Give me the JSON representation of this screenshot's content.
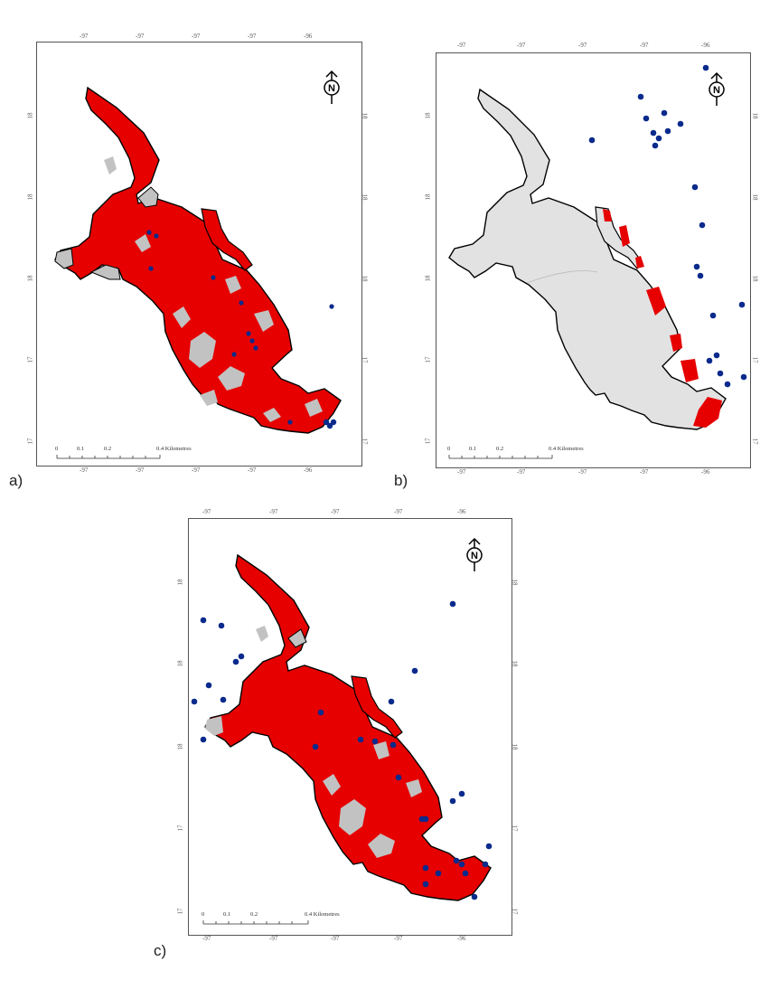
{
  "panels": [
    {
      "label": "a)",
      "layer": "red",
      "points": "a"
    },
    {
      "label": "b)",
      "layer": "red",
      "points": "b"
    },
    {
      "label": "c)",
      "layer": "red",
      "points": "c"
    }
  ],
  "scale_bar": {
    "labels": [
      "0",
      "0.1",
      "0.2",
      "0.4 Kilometres"
    ]
  },
  "ticks": {
    "top": [
      "-97",
      "-97",
      "-97",
      "-97",
      "-96"
    ],
    "bottom": [
      "-97",
      "-97",
      "-97",
      "-97",
      "-96"
    ],
    "side": [
      "18",
      "18",
      "18",
      "17",
      "17"
    ]
  },
  "north_arrow": "N",
  "colors": {
    "suitable": "#e60000",
    "unsuitable": "#c2c2c2",
    "points": "#0a2a8c",
    "outline": "#000000"
  }
}
